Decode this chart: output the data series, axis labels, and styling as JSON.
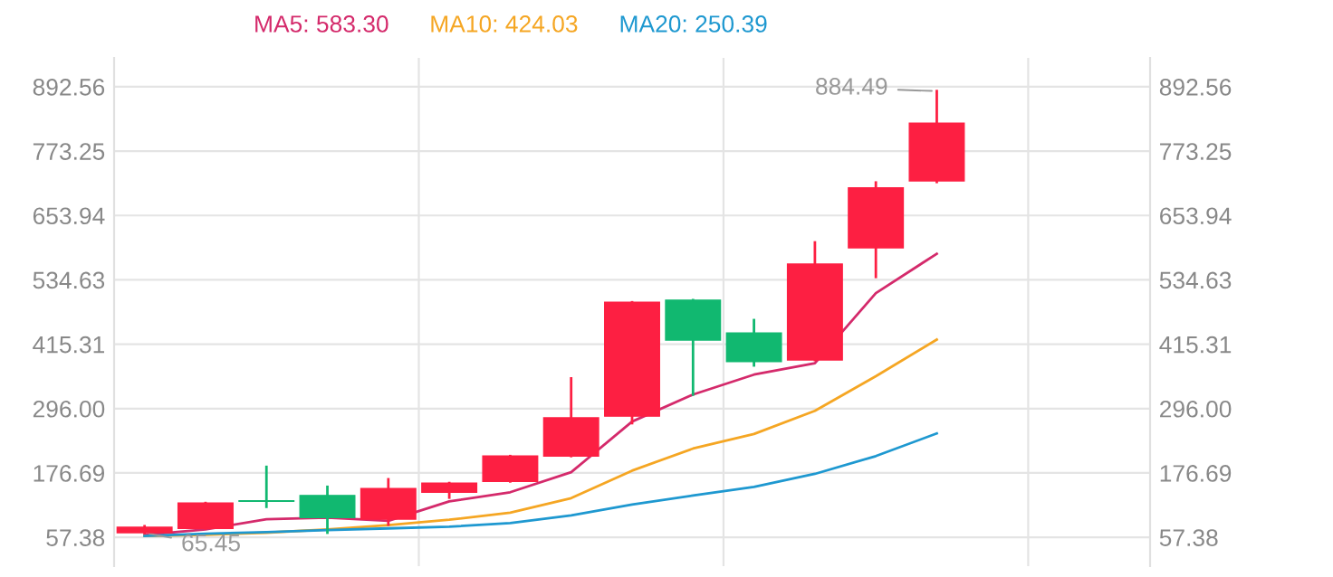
{
  "chart_data": {
    "type": "candlestick",
    "categories": [
      null,
      null,
      null,
      null,
      null,
      null,
      null,
      null,
      null,
      null,
      null,
      null,
      null,
      null,
      null,
      null,
      null
    ],
    "ohlc": [
      [
        66,
        78,
        65.45,
        76
      ],
      [
        74,
        121,
        74,
        121
      ],
      [
        125,
        188,
        114,
        124
      ],
      [
        135,
        151,
        66,
        94
      ],
      [
        91,
        165,
        81,
        148
      ],
      [
        141,
        158,
        131,
        158
      ],
      [
        161,
        208,
        161,
        208
      ],
      [
        208,
        352,
        208,
        279
      ],
      [
        282,
        493,
        269,
        493
      ],
      [
        497,
        497,
        322,
        423
      ],
      [
        436,
        460,
        376,
        383
      ],
      [
        386,
        604,
        386,
        564
      ],
      [
        594,
        715,
        540,
        705
      ],
      [
        718,
        884.49,
        716,
        825
      ],
      null,
      null,
      null
    ],
    "colors": [
      "#fd1f42",
      "#fd1f42",
      "#11b870",
      "#11b870",
      "#fd1f42",
      "#fd1f42",
      "#fd1f42",
      "#fd1f42",
      "#fd1f42",
      "#11b870",
      "#11b870",
      "#fd1f42",
      "#fd1f42",
      "#fd1f42",
      null,
      null,
      null
    ],
    "series": [
      {
        "name": "MA5: 583.30",
        "type": "line",
        "color": "#d42a6b",
        "values": [
          62,
          72,
          91,
          94,
          88,
          124,
          141,
          178,
          272,
          322,
          359,
          380,
          510,
          583,
          null,
          null,
          null
        ]
      },
      {
        "name": "MA10: 424.03",
        "type": "line",
        "color": "#f5a623",
        "values": [
          60,
          62,
          66,
          72,
          80,
          90,
          103,
          130,
          181,
          222,
          249,
          292,
          356,
          424,
          null,
          null,
          null
        ]
      },
      {
        "name": "MA20: 250.39",
        "type": "line",
        "color": "#1e98d0",
        "values": [
          60,
          64,
          67,
          71,
          74,
          77,
          84,
          98,
          118,
          135,
          151,
          175,
          208,
          250,
          null,
          null,
          null
        ]
      }
    ],
    "annotations": [
      "884.49",
      "65.45"
    ],
    "ylim": [
      4,
      946
    ],
    "yticks": [
      57.38,
      {
        "value": 176.69,
        "label": "176.69"
      },
      {
        "value": 296,
        "label": "296.00"
      },
      415.31,
      534.63,
      653.94,
      773.25,
      892.56
    ],
    "y2lim": [
      4,
      946
    ],
    "y2ticks": [
      57.38,
      {
        "value": 176.69,
        "label": "176.69"
      },
      {
        "value": 296,
        "label": "296.00"
      },
      415.31,
      534.63,
      653.94,
      773.25,
      892.56
    ],
    "grid": true,
    "legend": "top"
  }
}
